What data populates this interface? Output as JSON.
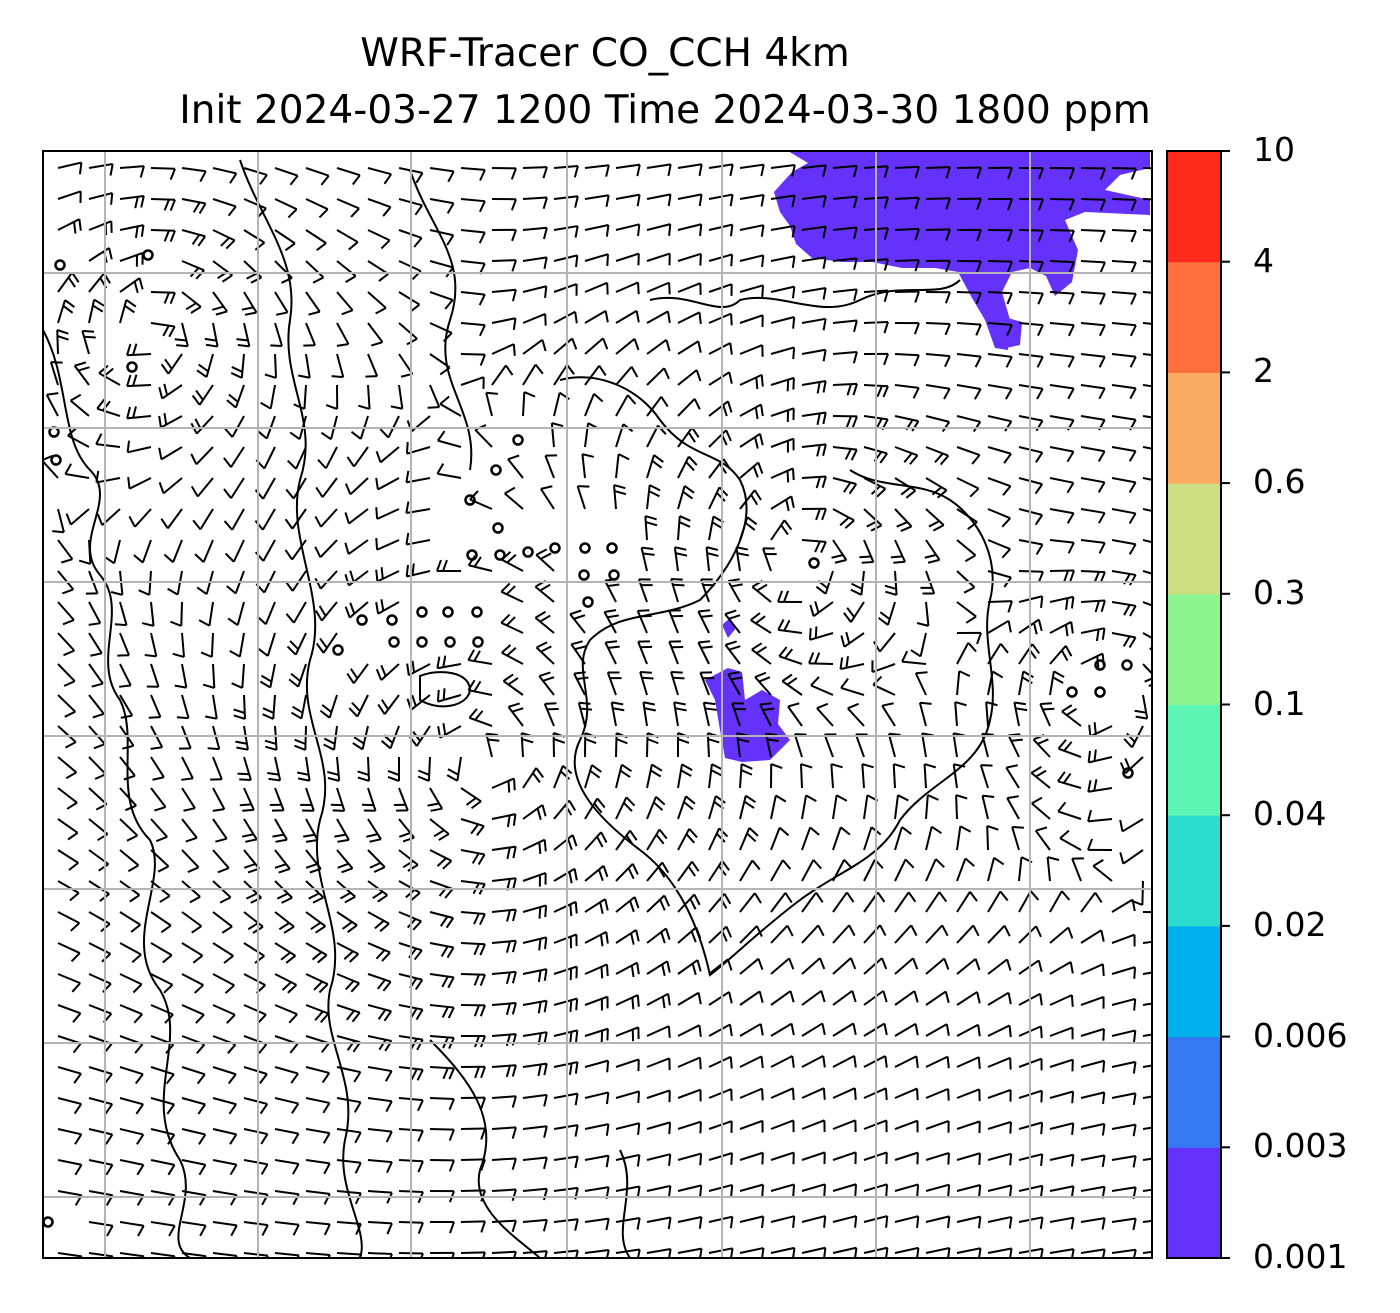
{
  "title": {
    "line1": "WRF-Tracer CO_CCH 4km",
    "line2": "Init 2024-03-27 1200 Time 2024-03-30 1800 ppm"
  },
  "colorbar": {
    "levels": [
      "0.001",
      "0.003",
      "0.006",
      "0.02",
      "0.04",
      "0.1",
      "0.3",
      "0.6",
      "2",
      "4",
      "10"
    ],
    "colors": [
      "#6432fa",
      "#3479f2",
      "#00b0ea",
      "#2cdccf",
      "#5cf5b4",
      "#8cf590",
      "#cddf82",
      "#fbaa62",
      "#ff6f3b",
      "#ff2a1b"
    ]
  },
  "map": {
    "gridline_color": "#b4b4b4",
    "tracer_color": "#6432fa",
    "barb_color": "#000000",
    "circulation_centers": [
      "north-west",
      "east-central",
      "south-central"
    ]
  }
}
